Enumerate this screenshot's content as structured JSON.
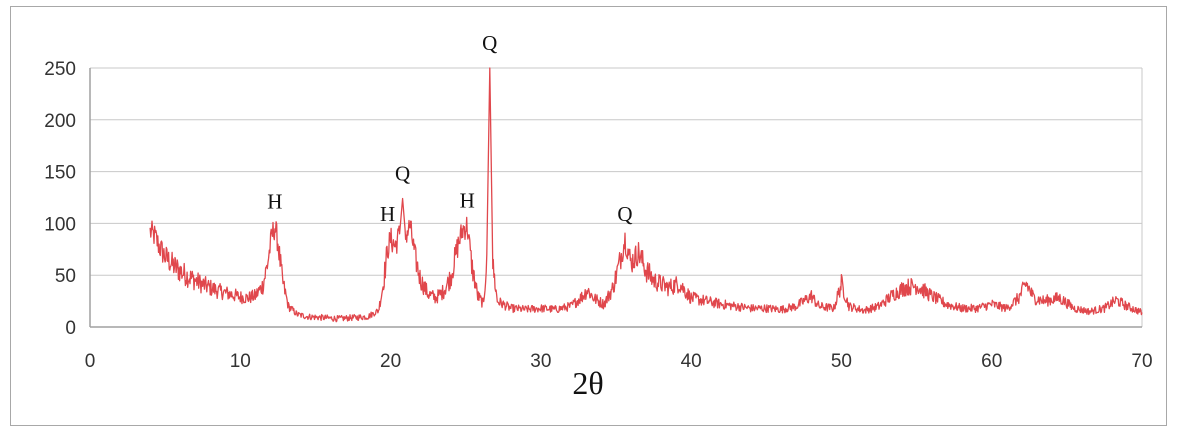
{
  "chart_data": {
    "type": "line",
    "title": "",
    "xlabel": "2θ",
    "ylabel": "",
    "xlim": [
      0,
      70
    ],
    "ylim": [
      0,
      250
    ],
    "x_ticks": [
      "0",
      "10",
      "20",
      "30",
      "40",
      "50",
      "60",
      "70"
    ],
    "y_ticks": [
      "0",
      "50",
      "100",
      "150",
      "200",
      "250"
    ],
    "grid": "horizontal",
    "legend": "none",
    "series_color": "#e0474c",
    "grid_color": "#c8c8c8",
    "axis_color": "#a0a0a0",
    "series": [
      {
        "points": [
          [
            4.0,
            92
          ],
          [
            4.3,
            88
          ],
          [
            4.6,
            78
          ],
          [
            5.0,
            68
          ],
          [
            5.5,
            60
          ],
          [
            6.0,
            54
          ],
          [
            6.5,
            49
          ],
          [
            7.0,
            45
          ],
          [
            7.5,
            41
          ],
          [
            8.0,
            38
          ],
          [
            8.5,
            35
          ],
          [
            9.0,
            33
          ],
          [
            9.5,
            31
          ],
          [
            10.0,
            29
          ],
          [
            10.5,
            28
          ],
          [
            11.0,
            30
          ],
          [
            11.5,
            40
          ],
          [
            11.8,
            60
          ],
          [
            12.1,
            88
          ],
          [
            12.3,
            97
          ],
          [
            12.5,
            82
          ],
          [
            12.8,
            45
          ],
          [
            13.2,
            20
          ],
          [
            13.8,
            12
          ],
          [
            14.5,
            10
          ],
          [
            15.5,
            9
          ],
          [
            16.5,
            8
          ],
          [
            17.5,
            9
          ],
          [
            18.5,
            10
          ],
          [
            19.2,
            16
          ],
          [
            19.5,
            40
          ],
          [
            19.8,
            75
          ],
          [
            20.0,
            85
          ],
          [
            20.3,
            78
          ],
          [
            20.6,
            90
          ],
          [
            20.8,
            124
          ],
          [
            21.0,
            88
          ],
          [
            21.3,
            98
          ],
          [
            21.6,
            70
          ],
          [
            22.0,
            45
          ],
          [
            22.5,
            32
          ],
          [
            23.0,
            28
          ],
          [
            23.5,
            34
          ],
          [
            24.0,
            48
          ],
          [
            24.5,
            80
          ],
          [
            24.8,
            94
          ],
          [
            25.1,
            98
          ],
          [
            25.4,
            60
          ],
          [
            25.8,
            30
          ],
          [
            26.2,
            22
          ],
          [
            26.4,
            70
          ],
          [
            26.6,
            250
          ],
          [
            26.8,
            60
          ],
          [
            27.1,
            25
          ],
          [
            28.0,
            18
          ],
          [
            29.0,
            17
          ],
          [
            30.0,
            18
          ],
          [
            31.0,
            17
          ],
          [
            32.0,
            20
          ],
          [
            32.8,
            30
          ],
          [
            33.1,
            36
          ],
          [
            33.5,
            28
          ],
          [
            34.2,
            22
          ],
          [
            34.8,
            38
          ],
          [
            35.2,
            60
          ],
          [
            35.6,
            85
          ],
          [
            36.0,
            62
          ],
          [
            36.5,
            72
          ],
          [
            37.0,
            55
          ],
          [
            37.5,
            45
          ],
          [
            38.5,
            38
          ],
          [
            39.2,
            42
          ],
          [
            40.0,
            28
          ],
          [
            41.0,
            25
          ],
          [
            42.0,
            22
          ],
          [
            43.0,
            20
          ],
          [
            44.0,
            18
          ],
          [
            45.0,
            18
          ],
          [
            46.0,
            17
          ],
          [
            47.0,
            20
          ],
          [
            48.0,
            30
          ],
          [
            48.5,
            20
          ],
          [
            49.5,
            18
          ],
          [
            50.0,
            42
          ],
          [
            50.5,
            20
          ],
          [
            51.5,
            16
          ],
          [
            52.5,
            20
          ],
          [
            53.5,
            32
          ],
          [
            54.2,
            38
          ],
          [
            55.0,
            40
          ],
          [
            56.0,
            30
          ],
          [
            57.0,
            22
          ],
          [
            58.0,
            18
          ],
          [
            59.0,
            18
          ],
          [
            60.0,
            22
          ],
          [
            61.0,
            18
          ],
          [
            61.8,
            28
          ],
          [
            62.3,
            42
          ],
          [
            62.8,
            28
          ],
          [
            63.5,
            25
          ],
          [
            64.5,
            28
          ],
          [
            65.5,
            18
          ],
          [
            66.5,
            15
          ],
          [
            67.5,
            18
          ],
          [
            68.3,
            26
          ],
          [
            69.0,
            20
          ],
          [
            70.0,
            14
          ]
        ]
      }
    ],
    "annotations": [
      {
        "text": "H",
        "x": 12.3,
        "y": 97
      },
      {
        "text": "H",
        "x": 19.8,
        "y": 85
      },
      {
        "text": "Q",
        "x": 20.8,
        "y": 124
      },
      {
        "text": "H",
        "x": 25.1,
        "y": 98
      },
      {
        "text": "Q",
        "x": 26.6,
        "y": 250
      },
      {
        "text": "Q",
        "x": 35.6,
        "y": 85
      }
    ]
  }
}
